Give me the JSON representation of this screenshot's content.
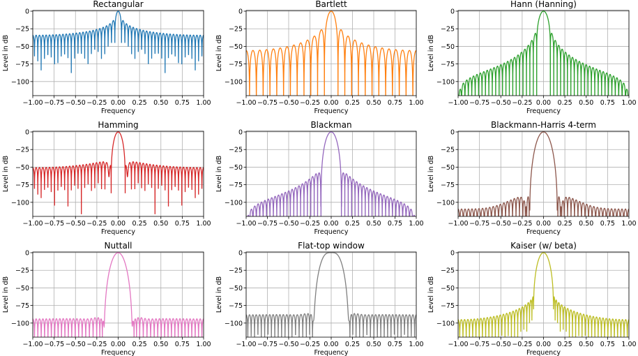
{
  "chart_data": [
    {
      "type": "line",
      "title": "Rectangular",
      "window": "rectangular",
      "color": "#1f77b4",
      "xlabel": "Frequency",
      "ylabel": "Level in dB",
      "xlim": [
        -1,
        1
      ],
      "ylim": [
        -120,
        1
      ],
      "xticks": [
        "−1.00",
        "−0.75",
        "−0.50",
        "−0.25",
        "0.00",
        "0.25",
        "0.50",
        "0.75",
        "1.00"
      ],
      "yticks": [
        "0",
        "−25",
        "−50",
        "−75",
        "−100"
      ],
      "mainlobe_peak_db": 0,
      "first_sidelobe_db": -13,
      "far_sidelobe_db": -35,
      "grid": true
    },
    {
      "type": "line",
      "title": "Bartlett",
      "window": "bartlett",
      "color": "#ff7f0e",
      "xlabel": "Frequency",
      "ylabel": "Level in dB",
      "xlim": [
        -1,
        1
      ],
      "ylim": [
        -120,
        1
      ],
      "xticks": [
        "−1.00",
        "−0.75",
        "−0.50",
        "−0.25",
        "0.00",
        "0.25",
        "0.50",
        "0.75",
        "1.00"
      ],
      "yticks": [
        "0",
        "−25",
        "−50",
        "−75",
        "−100"
      ],
      "mainlobe_peak_db": 0,
      "first_sidelobe_db": -27,
      "far_sidelobe_db": -85,
      "grid": true
    },
    {
      "type": "line",
      "title": "Hann (Hanning)",
      "window": "hann",
      "color": "#2ca02c",
      "xlabel": "Frequency",
      "ylabel": "Level in dB",
      "xlim": [
        -1,
        1
      ],
      "ylim": [
        -120,
        1
      ],
      "xticks": [
        "−1.00",
        "−0.75",
        "−0.50",
        "−0.25",
        "0.00",
        "0.25",
        "0.50",
        "0.75",
        "1.00"
      ],
      "yticks": [
        "0",
        "−25",
        "−50",
        "−75",
        "−100"
      ],
      "mainlobe_peak_db": 0,
      "first_sidelobe_db": -31,
      "far_sidelobe_db": -115,
      "grid": true
    },
    {
      "type": "line",
      "title": "Hamming",
      "window": "hamming",
      "color": "#d62728",
      "xlabel": "Frequency",
      "ylabel": "Level in dB",
      "xlim": [
        -1,
        1
      ],
      "ylim": [
        -120,
        1
      ],
      "xticks": [
        "−1.00",
        "−0.75",
        "−0.50",
        "−0.25",
        "0.00",
        "0.25",
        "0.50",
        "0.75",
        "1.00"
      ],
      "yticks": [
        "0",
        "−25",
        "−50",
        "−75",
        "−100"
      ],
      "mainlobe_peak_db": 0,
      "first_sidelobe_db": -43,
      "far_sidelobe_db": -53,
      "grid": true
    },
    {
      "type": "line",
      "title": "Blackman",
      "window": "blackman",
      "color": "#9467bd",
      "xlabel": "Frequency",
      "ylabel": "Level in dB",
      "xlim": [
        -1,
        1
      ],
      "ylim": [
        -120,
        1
      ],
      "xticks": [
        "−1.00",
        "−0.75",
        "−0.50",
        "−0.25",
        "0.00",
        "0.25",
        "0.50",
        "0.75",
        "1.00"
      ],
      "yticks": [
        "0",
        "−25",
        "−50",
        "−75",
        "−100"
      ],
      "mainlobe_peak_db": 0,
      "first_sidelobe_db": -58,
      "far_sidelobe_db": -117,
      "grid": true
    },
    {
      "type": "line",
      "title": "Blackmann-Harris 4-term",
      "window": "blackmanharris",
      "color": "#8c564b",
      "xlabel": "Frequency",
      "ylabel": "Level in dB",
      "xlim": [
        -1,
        1
      ],
      "ylim": [
        -120,
        1
      ],
      "xticks": [
        "−1.00",
        "−0.75",
        "−0.50",
        "−0.25",
        "0.00",
        "0.25",
        "0.50",
        "0.75",
        "1.00"
      ],
      "yticks": [
        "0",
        "−25",
        "−50",
        "−75",
        "−100"
      ],
      "mainlobe_peak_db": 0,
      "first_sidelobe_db": -92,
      "far_sidelobe_db": -112,
      "grid": true
    },
    {
      "type": "line",
      "title": "Nuttall",
      "window": "nuttall",
      "color": "#e377c2",
      "xlabel": "Frequency",
      "ylabel": "Level in dB",
      "xlim": [
        -1,
        1
      ],
      "ylim": [
        -120,
        1
      ],
      "xticks": [
        "−1.00",
        "−0.75",
        "−0.50",
        "−0.25",
        "0.00",
        "0.25",
        "0.50",
        "0.75",
        "1.00"
      ],
      "yticks": [
        "0",
        "−25",
        "−50",
        "−75",
        "−100"
      ],
      "mainlobe_peak_db": 0,
      "first_sidelobe_db": -94,
      "far_sidelobe_db": -96,
      "grid": true
    },
    {
      "type": "line",
      "title": "Flat-top window",
      "window": "flattop",
      "color": "#7f7f7f",
      "xlabel": "Frequency",
      "ylabel": "Level in dB",
      "xlim": [
        -1,
        1
      ],
      "ylim": [
        -120,
        1
      ],
      "xticks": [
        "−1.00",
        "−0.75",
        "−0.50",
        "−0.25",
        "0.00",
        "0.25",
        "0.50",
        "0.75",
        "1.00"
      ],
      "yticks": [
        "0",
        "−25",
        "−50",
        "−75",
        "−100"
      ],
      "mainlobe_peak_db": 0,
      "first_sidelobe_db": -88,
      "far_sidelobe_db": -90,
      "grid": true
    },
    {
      "type": "line",
      "title": "Kaiser (w/ beta)",
      "window": "kaiser",
      "color": "#bcbd22",
      "xlabel": "Frequency",
      "ylabel": "Level in dB",
      "xlim": [
        -1,
        1
      ],
      "ylim": [
        -120,
        1
      ],
      "xticks": [
        "−1.00",
        "−0.75",
        "−0.50",
        "−0.25",
        "0.00",
        "0.25",
        "0.50",
        "0.75",
        "1.00"
      ],
      "yticks": [
        "0",
        "−25",
        "−50",
        "−75",
        "−100"
      ],
      "mainlobe_peak_db": 0,
      "first_sidelobe_db": -72,
      "far_sidelobe_db": -110,
      "grid": true
    }
  ]
}
